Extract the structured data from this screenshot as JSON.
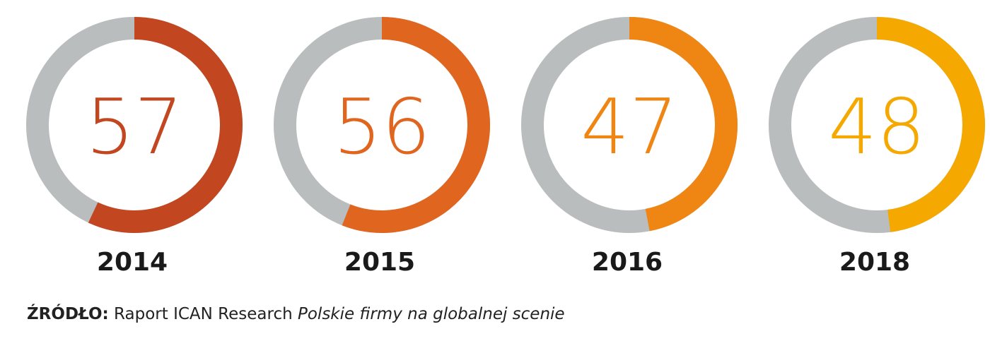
{
  "chart_data": {
    "type": "pie",
    "subtype": "donut",
    "scale_max": 100,
    "items": [
      {
        "label": "2014",
        "value": 57,
        "color": "#c2461f"
      },
      {
        "label": "2015",
        "value": 56,
        "color": "#e0651f"
      },
      {
        "label": "2016",
        "value": 47,
        "color": "#ef8614"
      },
      {
        "label": "2018",
        "value": 48,
        "color": "#f5a800"
      }
    ],
    "remainder_color": "#b9bdbe"
  },
  "source": {
    "prefix": "ŹRÓDŁO:",
    "text": "Raport ICAN Research",
    "title": "Polskie firmy na globalnej scenie"
  }
}
